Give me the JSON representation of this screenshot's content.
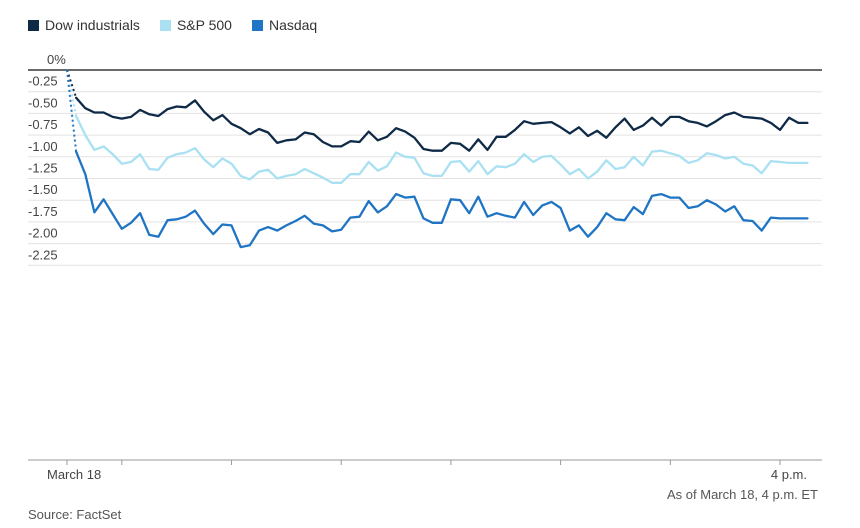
{
  "legend": [
    {
      "name": "Dow industrials",
      "color": "#0e2a47"
    },
    {
      "name": "S&P 500",
      "color": "#a9e1f2"
    },
    {
      "name": "Nasdaq",
      "color": "#1f74c4"
    }
  ],
  "note": "As of March 18, 4 p.m. ET",
  "source": "Source: FactSet",
  "chart_data": {
    "type": "line",
    "title": "",
    "xlabel": "",
    "ylabel": "",
    "ylim": [
      -2.3,
      0
    ],
    "yticks": [
      {
        "value": 0,
        "label": "0%"
      },
      {
        "value": -0.25,
        "label": "-0.25"
      },
      {
        "value": -0.5,
        "label": "-0.50"
      },
      {
        "value": -0.75,
        "label": "-0.75"
      },
      {
        "value": -1.0,
        "label": "-1.00"
      },
      {
        "value": -1.25,
        "label": "-1.25"
      },
      {
        "value": -1.5,
        "label": "-1.50"
      },
      {
        "value": -1.75,
        "label": "-1.75"
      },
      {
        "value": -2.0,
        "label": "-2.00"
      },
      {
        "value": -2.25,
        "label": "-2.25"
      }
    ],
    "xticks": [
      {
        "value": 0,
        "label": "March 18"
      },
      {
        "value": 390,
        "label": "4 p.m."
      }
    ],
    "xlim": [
      0,
      390
    ],
    "grid": true,
    "legend_position": "top-left",
    "series": [
      {
        "name": "Dow industrials",
        "color": "#0e2a47",
        "points": [
          [
            0,
            0
          ],
          [
            5,
            -0.32
          ],
          [
            10,
            -0.44
          ],
          [
            15,
            -0.49
          ],
          [
            20,
            -0.49
          ],
          [
            25,
            -0.54
          ],
          [
            30,
            -0.56
          ],
          [
            35,
            -0.54
          ],
          [
            40,
            -0.46
          ],
          [
            45,
            -0.51
          ],
          [
            50,
            -0.53
          ],
          [
            55,
            -0.45
          ],
          [
            60,
            -0.42
          ],
          [
            65,
            -0.43
          ],
          [
            70,
            -0.35
          ],
          [
            75,
            -0.48
          ],
          [
            80,
            -0.58
          ],
          [
            85,
            -0.52
          ],
          [
            90,
            -0.62
          ],
          [
            95,
            -0.67
          ],
          [
            100,
            -0.74
          ],
          [
            105,
            -0.68
          ],
          [
            110,
            -0.72
          ],
          [
            115,
            -0.84
          ],
          [
            120,
            -0.81
          ],
          [
            125,
            -0.8
          ],
          [
            130,
            -0.72
          ],
          [
            135,
            -0.74
          ],
          [
            140,
            -0.83
          ],
          [
            145,
            -0.88
          ],
          [
            150,
            -0.88
          ],
          [
            155,
            -0.82
          ],
          [
            160,
            -0.83
          ],
          [
            165,
            -0.71
          ],
          [
            170,
            -0.81
          ],
          [
            175,
            -0.77
          ],
          [
            180,
            -0.67
          ],
          [
            185,
            -0.71
          ],
          [
            190,
            -0.78
          ],
          [
            195,
            -0.91
          ],
          [
            200,
            -0.93
          ],
          [
            205,
            -0.93
          ],
          [
            210,
            -0.84
          ],
          [
            215,
            -0.85
          ],
          [
            220,
            -0.93
          ],
          [
            225,
            -0.8
          ],
          [
            230,
            -0.92
          ],
          [
            235,
            -0.77
          ],
          [
            240,
            -0.77
          ],
          [
            245,
            -0.69
          ],
          [
            250,
            -0.59
          ],
          [
            255,
            -0.62
          ],
          [
            260,
            -0.61
          ],
          [
            265,
            -0.6
          ],
          [
            270,
            -0.66
          ],
          [
            275,
            -0.73
          ],
          [
            280,
            -0.66
          ],
          [
            285,
            -0.76
          ],
          [
            290,
            -0.7
          ],
          [
            295,
            -0.78
          ],
          [
            300,
            -0.66
          ],
          [
            305,
            -0.56
          ],
          [
            310,
            -0.69
          ],
          [
            315,
            -0.64
          ],
          [
            320,
            -0.55
          ],
          [
            325,
            -0.64
          ],
          [
            330,
            -0.54
          ],
          [
            335,
            -0.54
          ],
          [
            340,
            -0.59
          ],
          [
            345,
            -0.61
          ],
          [
            350,
            -0.65
          ],
          [
            355,
            -0.59
          ],
          [
            360,
            -0.52
          ],
          [
            365,
            -0.49
          ],
          [
            370,
            -0.54
          ],
          [
            375,
            -0.55
          ],
          [
            380,
            -0.56
          ],
          [
            385,
            -0.61
          ],
          [
            390,
            -0.69
          ],
          [
            395,
            -0.55
          ],
          [
            400,
            -0.61
          ],
          [
            405,
            -0.61
          ]
        ]
      },
      {
        "name": "S&P 500",
        "color": "#a9e1f2",
        "points": [
          [
            0,
            0
          ],
          [
            5,
            -0.53
          ],
          [
            10,
            -0.75
          ],
          [
            15,
            -0.92
          ],
          [
            20,
            -0.88
          ],
          [
            25,
            -0.97
          ],
          [
            30,
            -1.08
          ],
          [
            35,
            -1.06
          ],
          [
            40,
            -0.97
          ],
          [
            45,
            -1.14
          ],
          [
            50,
            -1.15
          ],
          [
            55,
            -1.01
          ],
          [
            60,
            -0.97
          ],
          [
            65,
            -0.95
          ],
          [
            70,
            -0.9
          ],
          [
            75,
            -1.03
          ],
          [
            80,
            -1.12
          ],
          [
            85,
            -1.02
          ],
          [
            90,
            -1.08
          ],
          [
            95,
            -1.22
          ],
          [
            100,
            -1.26
          ],
          [
            105,
            -1.17
          ],
          [
            110,
            -1.15
          ],
          [
            115,
            -1.25
          ],
          [
            120,
            -1.22
          ],
          [
            125,
            -1.2
          ],
          [
            130,
            -1.14
          ],
          [
            135,
            -1.19
          ],
          [
            140,
            -1.24
          ],
          [
            145,
            -1.3
          ],
          [
            150,
            -1.3
          ],
          [
            155,
            -1.2
          ],
          [
            160,
            -1.2
          ],
          [
            165,
            -1.06
          ],
          [
            170,
            -1.16
          ],
          [
            175,
            -1.11
          ],
          [
            180,
            -0.95
          ],
          [
            185,
            -1.0
          ],
          [
            190,
            -1.01
          ],
          [
            195,
            -1.19
          ],
          [
            200,
            -1.22
          ],
          [
            205,
            -1.22
          ],
          [
            210,
            -1.06
          ],
          [
            215,
            -1.05
          ],
          [
            220,
            -1.17
          ],
          [
            225,
            -1.05
          ],
          [
            230,
            -1.2
          ],
          [
            235,
            -1.11
          ],
          [
            240,
            -1.12
          ],
          [
            245,
            -1.08
          ],
          [
            250,
            -0.97
          ],
          [
            255,
            -1.06
          ],
          [
            260,
            -1.0
          ],
          [
            265,
            -0.99
          ],
          [
            270,
            -1.09
          ],
          [
            275,
            -1.2
          ],
          [
            280,
            -1.14
          ],
          [
            285,
            -1.25
          ],
          [
            290,
            -1.17
          ],
          [
            295,
            -1.04
          ],
          [
            300,
            -1.14
          ],
          [
            305,
            -1.12
          ],
          [
            310,
            -1.0
          ],
          [
            315,
            -1.1
          ],
          [
            320,
            -0.94
          ],
          [
            325,
            -0.93
          ],
          [
            330,
            -0.96
          ],
          [
            335,
            -0.99
          ],
          [
            340,
            -1.07
          ],
          [
            345,
            -1.04
          ],
          [
            350,
            -0.96
          ],
          [
            355,
            -0.98
          ],
          [
            360,
            -1.02
          ],
          [
            365,
            -1.0
          ],
          [
            370,
            -1.08
          ],
          [
            375,
            -1.1
          ],
          [
            380,
            -1.19
          ],
          [
            385,
            -1.05
          ],
          [
            390,
            -1.06
          ],
          [
            395,
            -1.07
          ],
          [
            400,
            -1.07
          ],
          [
            405,
            -1.07
          ]
        ]
      },
      {
        "name": "Nasdaq",
        "color": "#1f74c4",
        "points": [
          [
            0,
            0
          ],
          [
            5,
            -0.94
          ],
          [
            10,
            -1.2
          ],
          [
            15,
            -1.64
          ],
          [
            20,
            -1.49
          ],
          [
            25,
            -1.66
          ],
          [
            30,
            -1.83
          ],
          [
            35,
            -1.76
          ],
          [
            40,
            -1.65
          ],
          [
            45,
            -1.9
          ],
          [
            50,
            -1.92
          ],
          [
            55,
            -1.73
          ],
          [
            60,
            -1.72
          ],
          [
            65,
            -1.69
          ],
          [
            70,
            -1.62
          ],
          [
            75,
            -1.77
          ],
          [
            80,
            -1.89
          ],
          [
            85,
            -1.78
          ],
          [
            90,
            -1.79
          ],
          [
            95,
            -2.04
          ],
          [
            100,
            -2.02
          ],
          [
            105,
            -1.85
          ],
          [
            110,
            -1.81
          ],
          [
            115,
            -1.85
          ],
          [
            120,
            -1.79
          ],
          [
            125,
            -1.74
          ],
          [
            130,
            -1.68
          ],
          [
            135,
            -1.77
          ],
          [
            140,
            -1.79
          ],
          [
            145,
            -1.86
          ],
          [
            150,
            -1.84
          ],
          [
            155,
            -1.7
          ],
          [
            160,
            -1.69
          ],
          [
            165,
            -1.51
          ],
          [
            170,
            -1.64
          ],
          [
            175,
            -1.57
          ],
          [
            180,
            -1.43
          ],
          [
            185,
            -1.47
          ],
          [
            190,
            -1.46
          ],
          [
            195,
            -1.71
          ],
          [
            200,
            -1.76
          ],
          [
            205,
            -1.76
          ],
          [
            210,
            -1.49
          ],
          [
            215,
            -1.5
          ],
          [
            220,
            -1.65
          ],
          [
            225,
            -1.46
          ],
          [
            230,
            -1.69
          ],
          [
            235,
            -1.65
          ],
          [
            240,
            -1.68
          ],
          [
            245,
            -1.7
          ],
          [
            250,
            -1.52
          ],
          [
            255,
            -1.67
          ],
          [
            260,
            -1.56
          ],
          [
            265,
            -1.52
          ],
          [
            270,
            -1.59
          ],
          [
            275,
            -1.85
          ],
          [
            280,
            -1.79
          ],
          [
            285,
            -1.92
          ],
          [
            290,
            -1.81
          ],
          [
            295,
            -1.65
          ],
          [
            300,
            -1.72
          ],
          [
            305,
            -1.73
          ],
          [
            310,
            -1.58
          ],
          [
            315,
            -1.66
          ],
          [
            320,
            -1.45
          ],
          [
            325,
            -1.43
          ],
          [
            330,
            -1.47
          ],
          [
            335,
            -1.47
          ],
          [
            340,
            -1.59
          ],
          [
            345,
            -1.57
          ],
          [
            350,
            -1.5
          ],
          [
            355,
            -1.55
          ],
          [
            360,
            -1.63
          ],
          [
            365,
            -1.57
          ],
          [
            370,
            -1.73
          ],
          [
            375,
            -1.74
          ],
          [
            380,
            -1.85
          ],
          [
            385,
            -1.7
          ],
          [
            390,
            -1.71
          ],
          [
            395,
            -1.71
          ],
          [
            400,
            -1.71
          ],
          [
            405,
            -1.71
          ]
        ]
      }
    ]
  }
}
